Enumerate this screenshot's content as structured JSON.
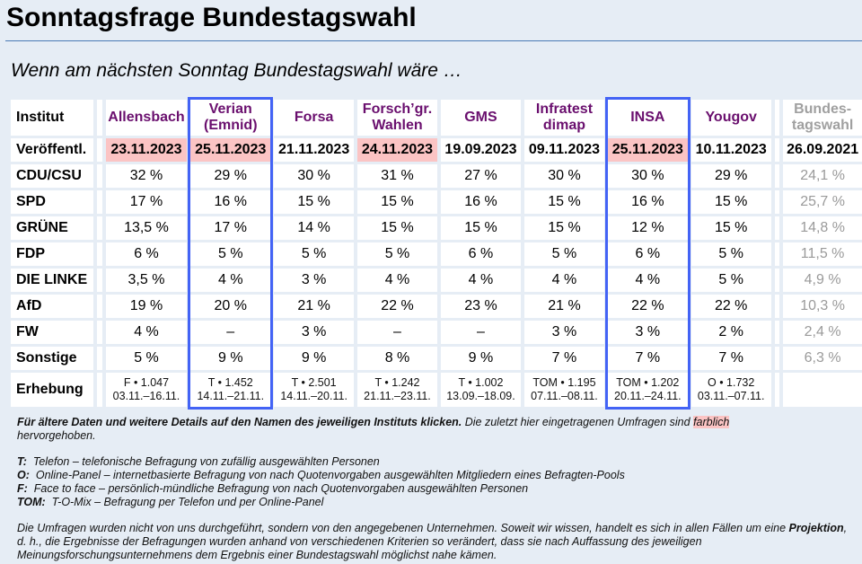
{
  "page": {
    "title": "Sonntagsfrage Bundestagswahl",
    "subtitle": "Wenn am nächsten Sonntag Bundestagswahl wäre …"
  },
  "table": {
    "row_labels": {
      "institut": "Institut",
      "published": "Veröffentl.",
      "survey": "Erhebung"
    },
    "columns": [
      {
        "name": "Allensbach",
        "published": "23.11.2023",
        "highlighted": true,
        "boxed": false,
        "survey_line1": "F • 1.047",
        "survey_line2": "03.11.–16.11."
      },
      {
        "name": "Verian\n(Emnid)",
        "name_l1": "Verian",
        "name_l2": "(Emnid)",
        "published": "25.11.2023",
        "highlighted": true,
        "boxed": true,
        "survey_line1": "T • 1.452",
        "survey_line2": "14.11.–21.11."
      },
      {
        "name": "Forsa",
        "published": "21.11.2023",
        "highlighted": false,
        "boxed": false,
        "survey_line1": "T • 2.501",
        "survey_line2": "14.11.–20.11."
      },
      {
        "name": "Forsch’gr.\nWahlen",
        "name_l1": "Forsch’gr.",
        "name_l2": "Wahlen",
        "published": "24.11.2023",
        "highlighted": true,
        "boxed": false,
        "survey_line1": "T • 1.242",
        "survey_line2": "21.11.–23.11."
      },
      {
        "name": "GMS",
        "published": "19.09.2023",
        "highlighted": false,
        "boxed": false,
        "survey_line1": "T • 1.002",
        "survey_line2": "13.09.–18.09."
      },
      {
        "name": "Infratest\ndimap",
        "name_l1": "Infratest",
        "name_l2": "dimap",
        "published": "09.11.2023",
        "highlighted": false,
        "boxed": false,
        "survey_line1": "TOM • 1.195",
        "survey_line2": "07.11.–08.11."
      },
      {
        "name": "INSA",
        "published": "25.11.2023",
        "highlighted": true,
        "boxed": true,
        "survey_line1": "TOM • 1.202",
        "survey_line2": "20.11.–24.11."
      },
      {
        "name": "Yougov",
        "published": "10.11.2023",
        "highlighted": false,
        "boxed": false,
        "survey_line1": "O • 1.732",
        "survey_line2": "03.11.–07.11."
      }
    ],
    "election_column": {
      "name_l1": "Bundes-",
      "name_l2": "tagswahl",
      "published": "26.09.2021"
    },
    "parties": [
      {
        "name": "CDU/CSU",
        "values": [
          "32 %",
          "29 %",
          "30 %",
          "31 %",
          "27 %",
          "30 %",
          "30 %",
          "29 %"
        ],
        "election": "24,1 %"
      },
      {
        "name": "SPD",
        "values": [
          "17 %",
          "16 %",
          "15 %",
          "15 %",
          "16 %",
          "15 %",
          "16 %",
          "15 %"
        ],
        "election": "25,7 %"
      },
      {
        "name": "GRÜNE",
        "values": [
          "13,5 %",
          "17 %",
          "14 %",
          "15 %",
          "15 %",
          "15 %",
          "12 %",
          "15 %"
        ],
        "election": "14,8 %"
      },
      {
        "name": "FDP",
        "values": [
          "6 %",
          "5 %",
          "5 %",
          "5 %",
          "6 %",
          "5 %",
          "6 %",
          "5 %"
        ],
        "election": "11,5 %"
      },
      {
        "name": "DIE LINKE",
        "values": [
          "3,5 %",
          "4 %",
          "3 %",
          "4 %",
          "4 %",
          "4 %",
          "4 %",
          "5 %"
        ],
        "election": "4,9 %"
      },
      {
        "name": "AfD",
        "values": [
          "19 %",
          "20 %",
          "21 %",
          "22 %",
          "23 %",
          "21 %",
          "22 %",
          "22 %"
        ],
        "election": "10,3 %"
      },
      {
        "name": "FW",
        "values": [
          "4 %",
          "–",
          "3 %",
          "–",
          "–",
          "3 %",
          "3 %",
          "2 %"
        ],
        "election": "2,4 %"
      },
      {
        "name": "Sonstige",
        "values": [
          "5 %",
          "9 %",
          "9 %",
          "8 %",
          "9 %",
          "7 %",
          "7 %",
          "7 %"
        ],
        "election": "6,3 %"
      }
    ]
  },
  "notes": {
    "intro_bold": "Für ältere Daten und weitere Details auf den Namen des jeweiligen Instituts klicken.",
    "intro_rest": " Die zuletzt hier eingetragenen Umfragen sind ",
    "intro_mark": "farblich",
    "intro_end": "hervorgehoben.",
    "legend": [
      {
        "key": "T:",
        "text": "Telefon – telefonische Befragung von zufällig ausgewählten Personen"
      },
      {
        "key": "O:",
        "text": "Online-Panel – internetbasierte Befragung von nach Quotenvorgaben ausgewählten Mitgliedern eines Befragten-Pools"
      },
      {
        "key": "F:",
        "text": "Face to face – persönlich-mündliche Befragung von nach Quotenvorgaben ausgewählten Personen"
      },
      {
        "key": "TOM:",
        "text": "T-O-Mix – Befragung per Telefon und per Online-Panel"
      }
    ],
    "disclaimer_1": "Die Umfragen wurden nicht von uns durchgeführt, sondern von den angegebenen Unternehmen. Soweit wir wissen, handelt es sich in allen Fällen um eine ",
    "disclaimer_bold": "Projektion",
    "disclaimer_2": ", d. h., die Ergebnisse der Befragungen wurden anhand von verschiedenen Kriterien so verändert, dass sie nach Auffassung des jeweiligen Meinungsforschungsunternehmens dem Ergebnis einer Bundestagswahl möglichst nahe kämen."
  },
  "colors": {
    "background": "#e6edf5",
    "institute_link": "#6a0f6e",
    "highlight": "#fbc4c4",
    "box_border": "#4363f5",
    "election_text": "#9a9a9a"
  }
}
